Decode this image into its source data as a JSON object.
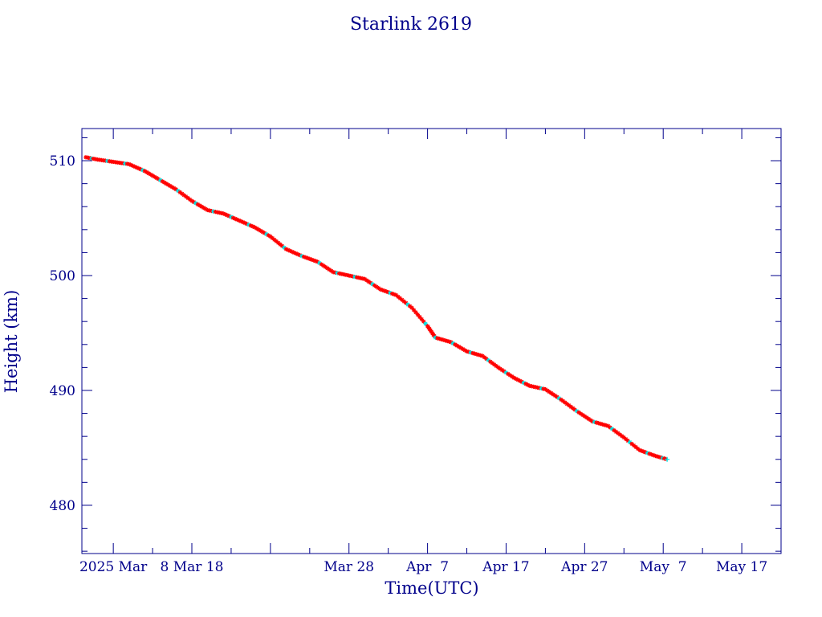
{
  "colors": {
    "axis": "#00008b",
    "text": "#00008b",
    "line": "#000000",
    "point_primary": "#ff0000",
    "point_secondary": "#00e5e5"
  },
  "chart_data": {
    "type": "scatter",
    "title": "Starlink 2619",
    "xlabel": "Time(UTC)",
    "ylabel": "Height (km)",
    "x_axis": {
      "type": "date",
      "range": [
        "2025-02-22",
        "2025-05-22"
      ],
      "tick_labels": [
        {
          "date": "2025-02-26",
          "label": "2025 Mar"
        },
        {
          "date": "2025-03-08",
          "label": "8 Mar 18"
        },
        {
          "date": "2025-03-28",
          "label": "Mar 28"
        },
        {
          "date": "2025-04-07",
          "label": "Apr  7"
        },
        {
          "date": "2025-04-17",
          "label": "Apr 17"
        },
        {
          "date": "2025-04-27",
          "label": "Apr 27"
        },
        {
          "date": "2025-05-07",
          "label": "May  7"
        },
        {
          "date": "2025-05-17",
          "label": "May 17"
        }
      ],
      "major_tick_interval_days": 10,
      "minor_tick_interval_days": 5
    },
    "y_axis": {
      "range": [
        475.8,
        512.8
      ],
      "major_ticks": [
        480,
        490,
        500,
        510
      ],
      "minor_tick_interval": 2
    },
    "grid": false,
    "legend": "none",
    "series": [
      {
        "points": [
          [
            "2025-02-22T12:00",
            510.3
          ],
          [
            "2025-02-24",
            510.1
          ],
          [
            "2025-02-26",
            509.9
          ],
          [
            "2025-02-28",
            509.7
          ],
          [
            "2025-03-02",
            509.1
          ],
          [
            "2025-03-04",
            508.3
          ],
          [
            "2025-03-06",
            507.5
          ],
          [
            "2025-03-08",
            506.5
          ],
          [
            "2025-03-10",
            505.7
          ],
          [
            "2025-03-12",
            505.4
          ],
          [
            "2025-03-14",
            504.8
          ],
          [
            "2025-03-16",
            504.2
          ],
          [
            "2025-03-18",
            503.4
          ],
          [
            "2025-03-20",
            502.3
          ],
          [
            "2025-03-22",
            501.7
          ],
          [
            "2025-03-24",
            501.2
          ],
          [
            "2025-03-26",
            500.3
          ],
          [
            "2025-03-28",
            500.0
          ],
          [
            "2025-03-30",
            499.7
          ],
          [
            "2025-04-01",
            498.8
          ],
          [
            "2025-04-03",
            498.3
          ],
          [
            "2025-04-05",
            497.2
          ],
          [
            "2025-04-07",
            495.6
          ],
          [
            "2025-04-08",
            494.6
          ],
          [
            "2025-04-10",
            494.2
          ],
          [
            "2025-04-12",
            493.4
          ],
          [
            "2025-04-14",
            493.0
          ],
          [
            "2025-04-16",
            492.0
          ],
          [
            "2025-04-18",
            491.1
          ],
          [
            "2025-04-20",
            490.4
          ],
          [
            "2025-04-22",
            490.1
          ],
          [
            "2025-04-24",
            489.2
          ],
          [
            "2025-04-26",
            488.2
          ],
          [
            "2025-04-28",
            487.3
          ],
          [
            "2025-04-30",
            486.9
          ],
          [
            "2025-05-02",
            485.9
          ],
          [
            "2025-05-04",
            484.8
          ],
          [
            "2025-05-06",
            484.3
          ],
          [
            "2025-05-07T12:00",
            484.0
          ]
        ]
      }
    ]
  }
}
